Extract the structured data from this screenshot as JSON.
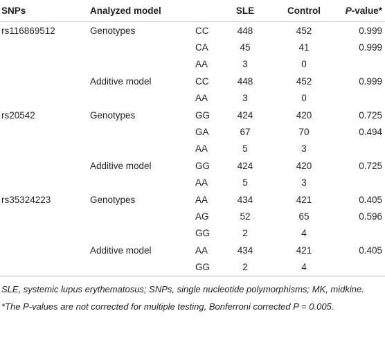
{
  "header": {
    "snps": "SNPs",
    "model": "Analyzed model",
    "sle": "SLE",
    "control": "Control",
    "p_value": {
      "italic": "P",
      "rest": "-value*"
    }
  },
  "table": {
    "rows": [
      [
        "rs116869512",
        "Genotypes",
        "CC",
        448,
        452,
        0.999
      ],
      [
        null,
        null,
        "CA",
        45,
        41,
        0.999
      ],
      [
        null,
        null,
        "AA",
        3,
        0,
        null
      ],
      [
        null,
        "Additive model",
        "CC",
        448,
        452,
        0.999
      ],
      [
        null,
        null,
        "AA",
        3,
        0,
        null
      ],
      [
        "rs20542",
        "Genotypes",
        "GG",
        424,
        420,
        0.725
      ],
      [
        null,
        null,
        "GA",
        67,
        70,
        0.494
      ],
      [
        null,
        null,
        "AA",
        5,
        3,
        null
      ],
      [
        null,
        "Additive model",
        "GG",
        424,
        420,
        0.725
      ],
      [
        null,
        null,
        "AA",
        5,
        3,
        null
      ],
      [
        "rs35324223",
        "Genotypes",
        "AA",
        434,
        421,
        0.405
      ],
      [
        null,
        null,
        "AG",
        52,
        65,
        0.596
      ],
      [
        null,
        null,
        "GG",
        2,
        4,
        null
      ],
      [
        null,
        "Additive model",
        "AA",
        434,
        421,
        0.405
      ],
      [
        null,
        null,
        "GG",
        2,
        4,
        null
      ]
    ]
  },
  "footnotes": [
    "SLE, systemic lupus erythematosus; SNPs, single nucleotide polymorphisms; MK, midkine.",
    "*The P-values are not corrected for multiple testing, Bonferroni corrected P = 0.005."
  ]
}
